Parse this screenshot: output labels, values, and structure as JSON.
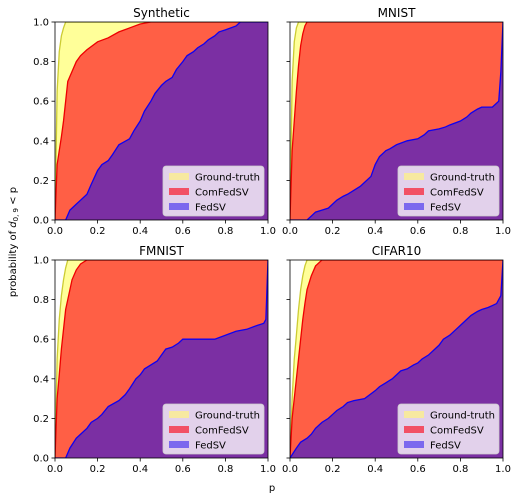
{
  "figure": {
    "ylabel_prefix": "probability of ",
    "ylabel_symbol": "d",
    "ylabel_subscript": "0, 9",
    "ylabel_suffix": " < p",
    "xlabel": "p"
  },
  "colors": {
    "ground_truth": "#ffff99",
    "ground_truth_edge": "#cccc33",
    "comfedsv": "#ff5f45",
    "comfedsv_edge": "#ee0000",
    "fedsv": "#7b2fa3",
    "fedsv_edge": "#1100ee",
    "legend_ground_truth": "#f7e9a0",
    "legend_comfedsv": "#f25065",
    "legend_fedsv": "#7b68ee"
  },
  "legend": {
    "ground_truth": "Ground-truth",
    "comfedsv": "ComFedSV",
    "fedsv": "FedSV"
  },
  "chart_data": [
    {
      "type": "area",
      "title": "Synthetic",
      "xlim": [
        0,
        1
      ],
      "ylim": [
        0,
        1
      ],
      "xticks": [
        "0.0",
        "0.2",
        "0.4",
        "0.6",
        "0.8",
        "1.0"
      ],
      "yticks": [
        "0.0",
        "0.2",
        "0.4",
        "0.6",
        "0.8",
        "1.0"
      ],
      "show_yticks": true,
      "show_xticks": true,
      "legend_position": "lower right",
      "series": [
        {
          "name": "Ground-truth",
          "x": [
            0,
            0.01,
            0.02,
            0.03,
            0.04,
            0.05,
            1
          ],
          "y": [
            0,
            0.65,
            0.85,
            0.93,
            0.97,
            1,
            1
          ]
        },
        {
          "name": "ComFedSV",
          "x": [
            0,
            0.01,
            0.02,
            0.03,
            0.04,
            0.05,
            0.06,
            0.08,
            0.1,
            0.12,
            0.15,
            0.2,
            0.25,
            0.3,
            0.35,
            0.4,
            0.45,
            0.5,
            0.6,
            1
          ],
          "y": [
            0,
            0.28,
            0.35,
            0.42,
            0.5,
            0.6,
            0.7,
            0.75,
            0.8,
            0.83,
            0.86,
            0.9,
            0.92,
            0.95,
            0.97,
            0.99,
            1,
            1,
            1,
            1
          ]
        },
        {
          "name": "FedSV",
          "x": [
            0,
            0.05,
            0.07,
            0.1,
            0.12,
            0.15,
            0.17,
            0.2,
            0.22,
            0.25,
            0.27,
            0.3,
            0.35,
            0.37,
            0.4,
            0.42,
            0.45,
            0.47,
            0.5,
            0.52,
            0.55,
            0.57,
            0.6,
            0.62,
            0.65,
            0.67,
            0.7,
            0.72,
            0.75,
            0.77,
            0.8,
            0.85,
            0.87,
            0.9,
            0.95,
            1.0
          ],
          "y": [
            0,
            0,
            0.05,
            0.08,
            0.1,
            0.13,
            0.18,
            0.25,
            0.28,
            0.3,
            0.33,
            0.38,
            0.41,
            0.45,
            0.5,
            0.55,
            0.6,
            0.64,
            0.68,
            0.7,
            0.72,
            0.76,
            0.8,
            0.83,
            0.85,
            0.87,
            0.89,
            0.91,
            0.93,
            0.95,
            0.96,
            0.98,
            1.0,
            1.0,
            1.0,
            1.0
          ]
        }
      ]
    },
    {
      "type": "area",
      "title": "MNIST",
      "xlim": [
        0,
        1
      ],
      "ylim": [
        0,
        1
      ],
      "xticks": [
        "0.0",
        "0.2",
        "0.4",
        "0.6",
        "0.8",
        "1.0"
      ],
      "yticks": [
        "0.0",
        "0.2",
        "0.4",
        "0.6",
        "0.8",
        "1.0"
      ],
      "show_yticks": false,
      "show_xticks": true,
      "legend_position": "lower right",
      "series": [
        {
          "name": "Ground-truth",
          "x": [
            0,
            0.01,
            0.02,
            0.03,
            0.04,
            1
          ],
          "y": [
            0,
            0.7,
            0.9,
            0.97,
            1,
            1
          ]
        },
        {
          "name": "ComFedSV",
          "x": [
            0,
            0.01,
            0.02,
            0.03,
            0.04,
            0.05,
            0.06,
            0.07,
            0.08,
            1
          ],
          "y": [
            0,
            0.35,
            0.5,
            0.65,
            0.78,
            0.88,
            0.94,
            0.98,
            1,
            1
          ]
        },
        {
          "name": "FedSV",
          "x": [
            0,
            0.08,
            0.1,
            0.12,
            0.15,
            0.18,
            0.2,
            0.22,
            0.25,
            0.27,
            0.3,
            0.33,
            0.35,
            0.38,
            0.4,
            0.42,
            0.45,
            0.47,
            0.5,
            0.55,
            0.6,
            0.63,
            0.65,
            0.7,
            0.73,
            0.75,
            0.8,
            0.83,
            0.85,
            0.88,
            0.9,
            0.95,
            0.98,
            0.99,
            1.0
          ],
          "y": [
            0,
            0,
            0.02,
            0.04,
            0.05,
            0.06,
            0.08,
            0.1,
            0.12,
            0.13,
            0.15,
            0.17,
            0.19,
            0.22,
            0.28,
            0.32,
            0.35,
            0.36,
            0.38,
            0.4,
            0.41,
            0.43,
            0.45,
            0.46,
            0.47,
            0.48,
            0.5,
            0.52,
            0.54,
            0.56,
            0.57,
            0.57,
            0.6,
            0.75,
            1.0
          ]
        }
      ]
    },
    {
      "type": "area",
      "title": "FMNIST",
      "xlim": [
        0,
        1
      ],
      "ylim": [
        0,
        1
      ],
      "xticks": [
        "0.0",
        "0.2",
        "0.4",
        "0.6",
        "0.8",
        "1.0"
      ],
      "yticks": [
        "0.0",
        "0.2",
        "0.4",
        "0.6",
        "0.8",
        "1.0"
      ],
      "show_yticks": true,
      "show_xticks": true,
      "legend_position": "lower right",
      "series": [
        {
          "name": "Ground-truth",
          "x": [
            0,
            0.01,
            0.02,
            0.03,
            0.04,
            0.05,
            0.06,
            1
          ],
          "y": [
            0,
            0.5,
            0.7,
            0.82,
            0.9,
            0.96,
            1,
            1
          ]
        },
        {
          "name": "ComFedSV",
          "x": [
            0,
            0.01,
            0.02,
            0.03,
            0.04,
            0.05,
            0.06,
            0.07,
            0.08,
            0.1,
            0.12,
            0.15,
            1
          ],
          "y": [
            0,
            0.3,
            0.42,
            0.55,
            0.65,
            0.75,
            0.8,
            0.85,
            0.9,
            0.95,
            0.98,
            1,
            1
          ]
        },
        {
          "name": "FedSV",
          "x": [
            0,
            0.05,
            0.07,
            0.1,
            0.12,
            0.15,
            0.17,
            0.2,
            0.22,
            0.25,
            0.3,
            0.33,
            0.35,
            0.38,
            0.4,
            0.42,
            0.45,
            0.48,
            0.5,
            0.52,
            0.55,
            0.58,
            0.6,
            0.65,
            0.7,
            0.75,
            0.8,
            0.85,
            0.9,
            0.95,
            0.98,
            0.99,
            1.0
          ],
          "y": [
            0,
            0,
            0.05,
            0.1,
            0.12,
            0.15,
            0.18,
            0.2,
            0.22,
            0.26,
            0.29,
            0.32,
            0.35,
            0.4,
            0.42,
            0.45,
            0.47,
            0.49,
            0.52,
            0.55,
            0.56,
            0.58,
            0.6,
            0.6,
            0.6,
            0.6,
            0.62,
            0.64,
            0.65,
            0.67,
            0.68,
            0.7,
            1.0
          ]
        }
      ]
    },
    {
      "type": "area",
      "title": "CIFAR10",
      "xlim": [
        0,
        1
      ],
      "ylim": [
        0,
        1
      ],
      "xticks": [
        "0.0",
        "0.2",
        "0.4",
        "0.6",
        "0.8",
        "1.0"
      ],
      "yticks": [
        "0.0",
        "0.2",
        "0.4",
        "0.6",
        "0.8",
        "1.0"
      ],
      "show_yticks": false,
      "show_xticks": true,
      "legend_position": "lower right",
      "series": [
        {
          "name": "Ground-truth",
          "x": [
            0,
            0.01,
            0.02,
            0.03,
            0.04,
            0.05,
            0.06,
            0.07,
            0.08,
            1
          ],
          "y": [
            0,
            0.3,
            0.5,
            0.62,
            0.75,
            0.85,
            0.92,
            0.97,
            1,
            1
          ]
        },
        {
          "name": "ComFedSV",
          "x": [
            0,
            0.01,
            0.02,
            0.03,
            0.04,
            0.05,
            0.06,
            0.07,
            0.08,
            0.1,
            0.12,
            0.15,
            1
          ],
          "y": [
            0,
            0.2,
            0.3,
            0.4,
            0.5,
            0.6,
            0.7,
            0.78,
            0.85,
            0.92,
            0.97,
            1,
            1
          ]
        },
        {
          "name": "FedSV",
          "x": [
            0,
            0.03,
            0.05,
            0.08,
            0.1,
            0.12,
            0.15,
            0.18,
            0.2,
            0.22,
            0.25,
            0.27,
            0.3,
            0.35,
            0.4,
            0.42,
            0.45,
            0.48,
            0.5,
            0.52,
            0.55,
            0.58,
            0.6,
            0.62,
            0.65,
            0.68,
            0.7,
            0.72,
            0.75,
            0.78,
            0.8,
            0.83,
            0.85,
            0.88,
            0.9,
            0.93,
            0.95,
            0.97,
            0.98,
            0.99,
            1.0
          ],
          "y": [
            0,
            0.05,
            0.08,
            0.1,
            0.12,
            0.15,
            0.18,
            0.2,
            0.22,
            0.24,
            0.26,
            0.28,
            0.29,
            0.3,
            0.34,
            0.36,
            0.38,
            0.4,
            0.42,
            0.44,
            0.45,
            0.47,
            0.48,
            0.5,
            0.52,
            0.55,
            0.57,
            0.6,
            0.62,
            0.65,
            0.67,
            0.7,
            0.72,
            0.74,
            0.75,
            0.76,
            0.77,
            0.78,
            0.8,
            0.82,
            1.0
          ]
        }
      ]
    }
  ]
}
